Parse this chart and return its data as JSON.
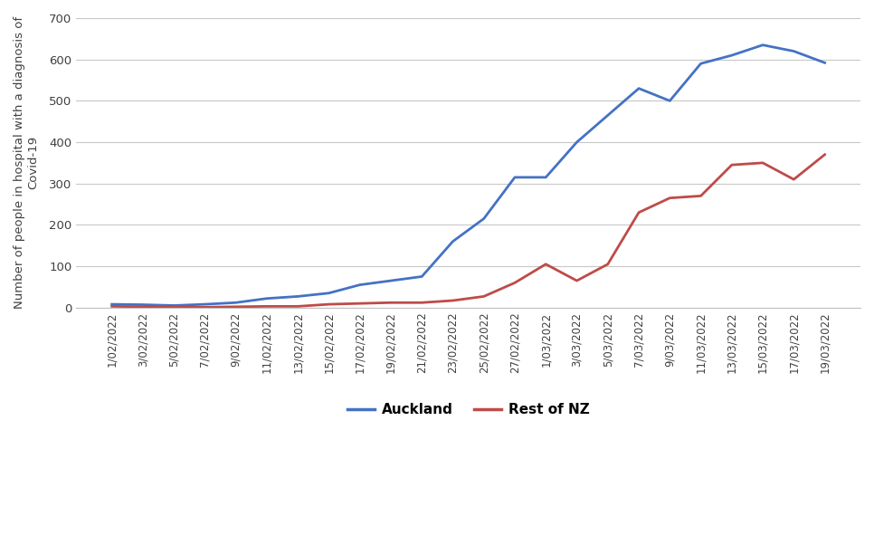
{
  "labels": [
    "1/02/2022",
    "3/02/2022",
    "5/02/2022",
    "7/02/2022",
    "9/02/2022",
    "11/02/2022",
    "13/02/2022",
    "15/02/2022",
    "17/02/2022",
    "19/02/2022",
    "21/02/2022",
    "23/02/2022",
    "25/02/2022",
    "27/02/2022",
    "1/03/2022",
    "3/03/2022",
    "5/03/2022",
    "7/03/2022",
    "9/03/2022",
    "11/03/2022",
    "13/03/2022",
    "15/03/2022",
    "17/03/2022",
    "19/03/2022"
  ],
  "auckland": [
    8,
    7,
    5,
    8,
    12,
    22,
    27,
    35,
    55,
    65,
    75,
    160,
    215,
    315,
    315,
    400,
    465,
    530,
    500,
    590,
    610,
    635,
    620,
    592
  ],
  "rest_of_nz": [
    3,
    2,
    1,
    1,
    2,
    3,
    3,
    8,
    10,
    12,
    12,
    17,
    27,
    60,
    105,
    65,
    105,
    230,
    265,
    270,
    345,
    350,
    310,
    370
  ],
  "auckland_color": "#4472C4",
  "rest_nz_color": "#BE4B48",
  "ylabel": "Number of people in hospital with a diagnosis of\nCovid-19",
  "ylim": [
    0,
    700
  ],
  "yticks": [
    0,
    100,
    200,
    300,
    400,
    500,
    600,
    700
  ],
  "legend_auckland": "Auckland",
  "legend_rest": "Rest of NZ",
  "background_color": "#FFFFFF",
  "grid_color": "#C8C8C8"
}
